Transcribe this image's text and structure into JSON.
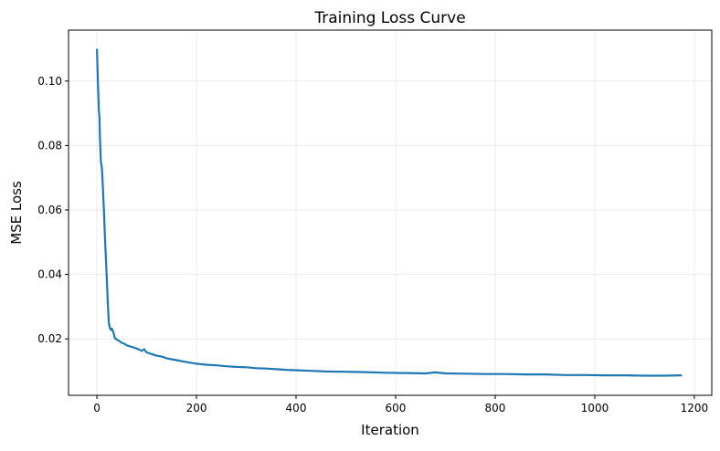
{
  "chart_data": {
    "type": "line",
    "title": "Training Loss Curve",
    "xlabel": "Iteration",
    "ylabel": "MSE Loss",
    "xlim": [
      -57,
      1235
    ],
    "ylim": [
      0.0025,
      0.1158
    ],
    "xticks": [
      0,
      200,
      400,
      600,
      800,
      1000,
      1200
    ],
    "yticks": [
      0.02,
      0.04,
      0.06,
      0.08,
      0.1
    ],
    "ytick_labels": [
      "0.02",
      "0.04",
      "0.06",
      "0.08",
      "0.10"
    ],
    "grid": true,
    "color": "#1f77b4",
    "series": [
      {
        "x": [
          0,
          2,
          4,
          5,
          6,
          8,
          10,
          12,
          14,
          16,
          18,
          20,
          22,
          24,
          26,
          28,
          30,
          32,
          34,
          36,
          40,
          45,
          50,
          55,
          60,
          70,
          80,
          90,
          95,
          100,
          110,
          120,
          130,
          140,
          150,
          160,
          170,
          180,
          200,
          220,
          240,
          260,
          280,
          300,
          320,
          340,
          360,
          380,
          400,
          430,
          460,
          500,
          540,
          580,
          620,
          660,
          680,
          700,
          740,
          780,
          820,
          860,
          900,
          940,
          980,
          1020,
          1060,
          1100,
          1140,
          1175
        ],
        "y": [
          0.11,
          0.1,
          0.091,
          0.089,
          0.083,
          0.075,
          0.073,
          0.067,
          0.06,
          0.052,
          0.045,
          0.038,
          0.031,
          0.025,
          0.0235,
          0.0228,
          0.0232,
          0.0225,
          0.0215,
          0.0202,
          0.0198,
          0.0193,
          0.0188,
          0.0185,
          0.018,
          0.0175,
          0.017,
          0.0163,
          0.0168,
          0.0158,
          0.0153,
          0.0148,
          0.0145,
          0.014,
          0.0137,
          0.0134,
          0.0131,
          0.0128,
          0.0123,
          0.012,
          0.0118,
          0.0115,
          0.0113,
          0.0112,
          0.0109,
          0.0108,
          0.0106,
          0.0104,
          0.0103,
          0.0101,
          0.0099,
          0.0098,
          0.0097,
          0.0095,
          0.0094,
          0.0093,
          0.0096,
          0.0093,
          0.0092,
          0.0091,
          0.0091,
          0.009,
          0.009,
          0.0088,
          0.0088,
          0.0087,
          0.0087,
          0.0086,
          0.0086,
          0.0087
        ]
      }
    ]
  }
}
